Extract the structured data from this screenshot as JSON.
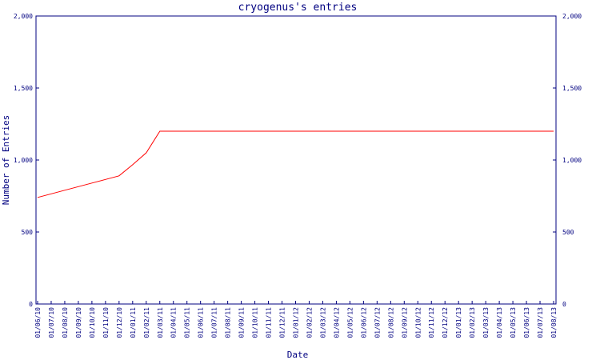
{
  "chart_data": {
    "type": "line",
    "title": "cryogenus's entries",
    "x_label": "Date",
    "y_label": "Number of Entries",
    "categories": [
      "01/06/10",
      "01/07/10",
      "01/08/10",
      "01/09/10",
      "01/10/10",
      "01/11/10",
      "01/12/10",
      "01/01/11",
      "01/02/11",
      "01/03/11",
      "01/04/11",
      "01/05/11",
      "01/06/11",
      "01/07/11",
      "01/08/11",
      "01/09/11",
      "01/10/11",
      "01/11/11",
      "01/12/11",
      "01/01/12",
      "01/02/12",
      "01/03/12",
      "01/04/12",
      "01/05/12",
      "01/06/12",
      "01/07/12",
      "01/08/12",
      "01/09/12",
      "01/10/12",
      "01/11/12",
      "01/12/12",
      "01/01/13",
      "01/02/13",
      "01/03/13",
      "01/04/13",
      "01/05/13",
      "01/06/13",
      "01/07/13",
      "01/08/13"
    ],
    "series": [
      {
        "name": "entries",
        "color": "#ff0000",
        "values": [
          740,
          765,
          790,
          815,
          840,
          865,
          890,
          967,
          1050,
          1200,
          1200,
          1200,
          1200,
          1200,
          1200,
          1200,
          1200,
          1200,
          1200,
          1200,
          1200,
          1200,
          1200,
          1200,
          1200,
          1200,
          1200,
          1200,
          1200,
          1200,
          1200,
          1200,
          1200,
          1200,
          1200,
          1200,
          1200,
          1200,
          1200
        ]
      }
    ],
    "ylim": [
      0,
      2000
    ],
    "yticks": [
      0,
      500,
      {
        "value": 1000,
        "label": "1,000"
      },
      {
        "value": 1500,
        "label": "1,500"
      },
      {
        "value": 2000,
        "label": "2,000"
      }
    ]
  }
}
